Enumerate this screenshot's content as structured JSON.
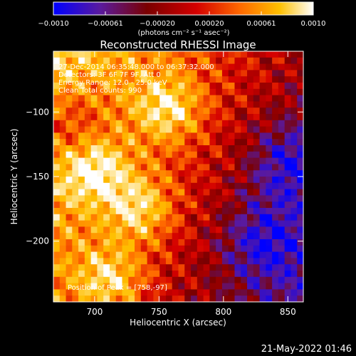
{
  "chart_data": {
    "type": "heatmap",
    "title": "Reconstructed RHESSI Image",
    "xlabel": "Heliocentric X (arcsec)",
    "ylabel": "Heliocentric Y (arcsec)",
    "xlim": [
      668,
      862
    ],
    "ylim": [
      -247,
      -53
    ],
    "x_ticks": [
      700,
      750,
      800,
      850
    ],
    "y_ticks": [
      -100,
      -150,
      -200
    ],
    "colorbar": {
      "range": [
        -0.001,
        0.001
      ],
      "ticks": [
        "−0.0010",
        "−0.00061",
        "−0.00020",
        "0.00020",
        "0.00061",
        "0.0010"
      ],
      "unit_label": "(photons cm⁻² s⁻¹ asec⁻²)",
      "colormap": [
        "#0000ff",
        "#5a1a9e",
        "#7a0000",
        "#d40000",
        "#ff6a00",
        "#ffc000",
        "#ffffff"
      ]
    },
    "annotations": [
      "27-Dec-2014 06:35:48.000 to 06:37:32.000",
      "Detectors: 3F 6F 7F 9F, Att 0",
      "Energy Range: 12.0 - 25.0 keV",
      "Clean     Total counts: 990"
    ],
    "peak_label": "Position of Peak = [758,-97]",
    "peak_position": [
      758,
      -97
    ],
    "image_intensity_summary": {
      "bright_regions": [
        [
          758,
          -97
        ],
        [
          735,
          -175
        ],
        [
          700,
          -145
        ],
        [
          712,
          -230
        ]
      ],
      "dim_regions": [
        [
          830,
          -200
        ],
        [
          680,
          -110
        ],
        [
          850,
          -140
        ]
      ]
    },
    "grid": false
  },
  "footer": {
    "timestamp": "21-May-2022 01:46"
  }
}
